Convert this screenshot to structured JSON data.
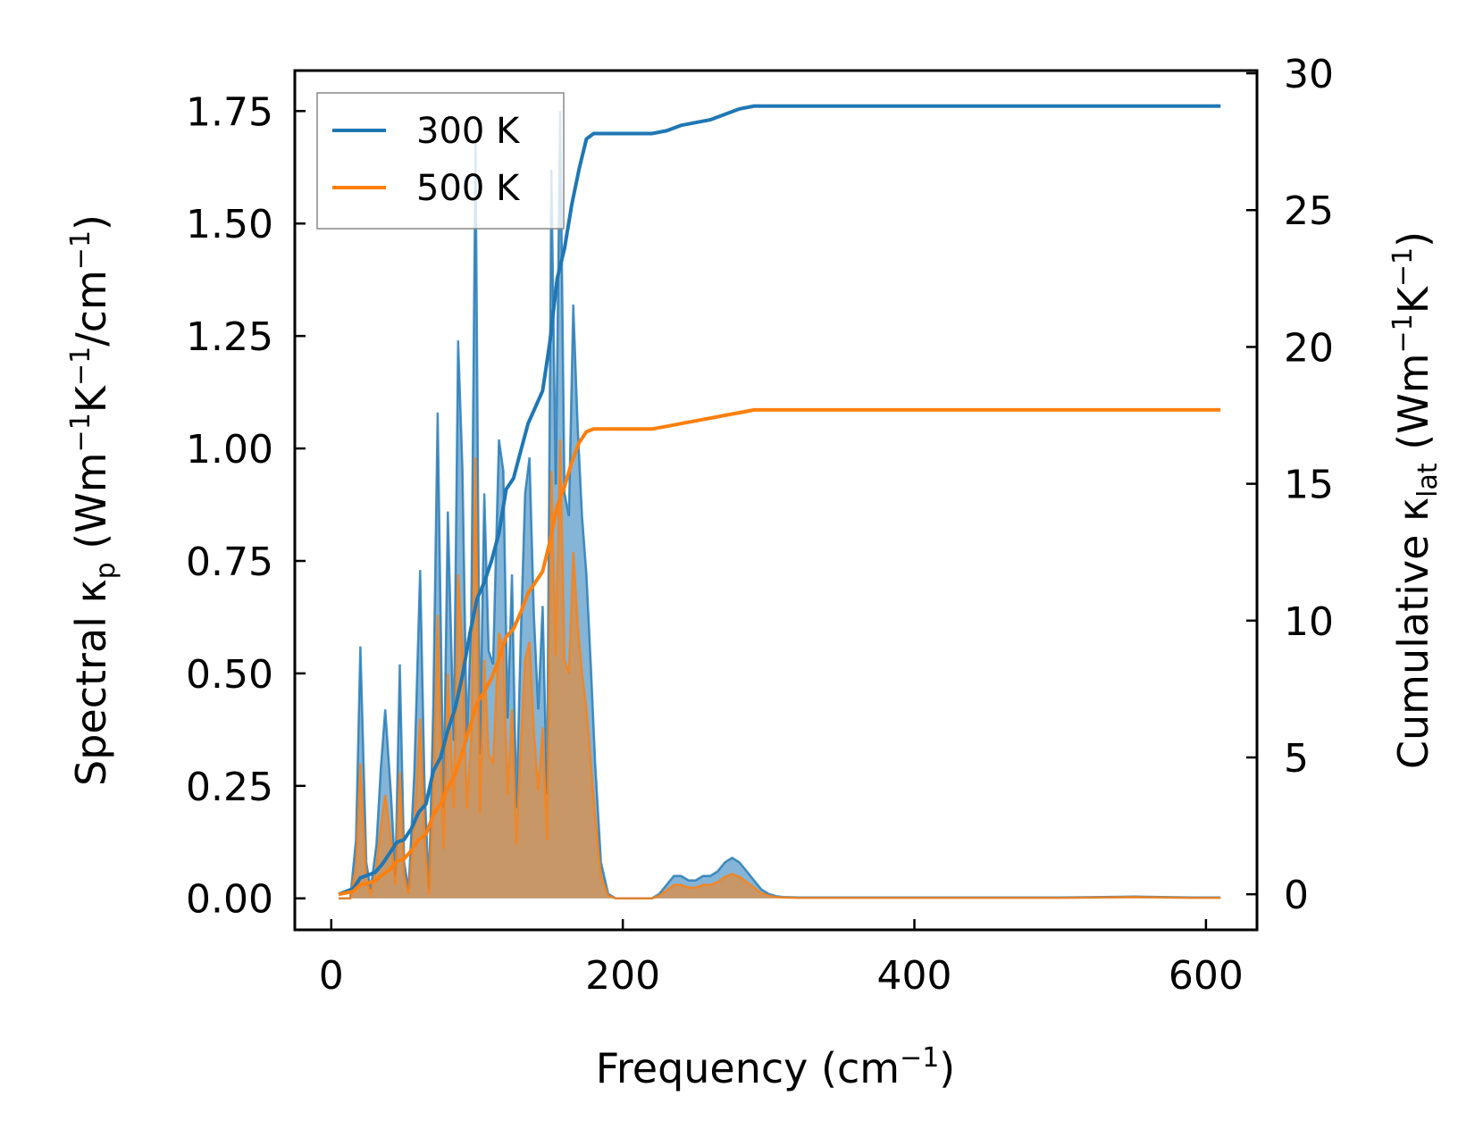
{
  "chart_data": {
    "type": "line",
    "xlabel": {
      "main": "Frequency (cm",
      "sup": "−1",
      "end": ")"
    },
    "ylabel_left": {
      "main": "Spectral κ",
      "sub": "p",
      "mid1": " (Wm",
      "sup1": "−1",
      "mid2": "K",
      "sup2": "−1",
      "mid3": "/cm",
      "sup3": "−1",
      "end": ")"
    },
    "ylabel_right": {
      "main": "Cumulative κ",
      "sub": "lat",
      "mid1": " (Wm",
      "sup1": "−1",
      "mid2": "K",
      "sup2": "−1",
      "end": ")"
    },
    "xlim": [
      -25,
      635
    ],
    "ylim_left": [
      -0.07,
      1.84
    ],
    "ylim_right": [
      -1.3,
      30.1
    ],
    "xticks": [
      0,
      200,
      400,
      600
    ],
    "xtick_labels": [
      "0",
      "200",
      "400",
      "600"
    ],
    "yticks_left": [
      0,
      0.25,
      0.5,
      0.75,
      1.0,
      1.25,
      1.5,
      1.75
    ],
    "ytick_labels_left": [
      "0.00",
      "0.25",
      "0.50",
      "0.75",
      "1.00",
      "1.25",
      "1.50",
      "1.75"
    ],
    "yticks_right": [
      0,
      5,
      10,
      15,
      20,
      25,
      30
    ],
    "ytick_labels_right": [
      "0",
      "5",
      "10",
      "15",
      "20",
      "25",
      "30"
    ],
    "grid": false,
    "legend_position": "top-left",
    "series": [
      {
        "name": "300 K",
        "color": "#1f77b4",
        "spectral": {
          "x": [
            5,
            13,
            17,
            20,
            24,
            27,
            31,
            34,
            37,
            41,
            44,
            47,
            50,
            53,
            57,
            61,
            64,
            67,
            70,
            73,
            77,
            80,
            84,
            87,
            90,
            93,
            96,
            99,
            102,
            105,
            108,
            111,
            115,
            118,
            121,
            124,
            127,
            130,
            133,
            136,
            139,
            142,
            145,
            148,
            151,
            154,
            157,
            160,
            163,
            166,
            169,
            172,
            175,
            178,
            181,
            185,
            190,
            195,
            200,
            210,
            220,
            225,
            230,
            235,
            240,
            245,
            250,
            255,
            260,
            265,
            270,
            275,
            280,
            285,
            290,
            295,
            300,
            305,
            310,
            320,
            350,
            400,
            450,
            500,
            530,
            550,
            570,
            590,
            610
          ],
          "y": [
            0,
            0,
            0.13,
            0.56,
            0.08,
            0.02,
            0.12,
            0.29,
            0.42,
            0.23,
            0.05,
            0.52,
            0.08,
            0.02,
            0.28,
            0.73,
            0.25,
            0.02,
            0.43,
            1.08,
            0.2,
            0.86,
            0.35,
            1.24,
            0.95,
            0.35,
            0.62,
            1.68,
            0.32,
            0.9,
            0.55,
            0.52,
            1.02,
            0.95,
            0.4,
            0.72,
            0.2,
            0.58,
            0.9,
            0.98,
            0.63,
            0.42,
            0.65,
            0.23,
            1.62,
            0.92,
            1.75,
            0.9,
            0.85,
            1.32,
            1.05,
            0.85,
            0.72,
            0.52,
            0.3,
            0.08,
            0.01,
            0,
            0,
            0,
            0,
            0.01,
            0.03,
            0.05,
            0.05,
            0.04,
            0.04,
            0.05,
            0.05,
            0.06,
            0.08,
            0.09,
            0.08,
            0.06,
            0.04,
            0.02,
            0.01,
            0.005,
            0.003,
            0.002,
            0.002,
            0.002,
            0.002,
            0.002,
            0.003,
            0.004,
            0.003,
            0.002,
            0.002
          ]
        },
        "cumulative": {
          "x": [
            5,
            15,
            20,
            25,
            30,
            35,
            40,
            45,
            50,
            55,
            60,
            65,
            70,
            75,
            80,
            85,
            90,
            95,
            100,
            105,
            110,
            115,
            120,
            125,
            130,
            135,
            140,
            145,
            150,
            155,
            160,
            165,
            170,
            175,
            180,
            185,
            190,
            200,
            220,
            230,
            240,
            260,
            270,
            280,
            290,
            300,
            310,
            350,
            400,
            450,
            500,
            550,
            610
          ],
          "y": [
            0,
            0.2,
            0.6,
            0.7,
            0.8,
            1.1,
            1.5,
            1.9,
            2.0,
            2.4,
            3.0,
            3.3,
            4.5,
            5.0,
            6.0,
            6.8,
            8.0,
            9.5,
            10.8,
            11.4,
            12.2,
            13.2,
            14.8,
            15.2,
            16.2,
            17.2,
            17.8,
            18.4,
            20.2,
            22.5,
            23.6,
            25.2,
            26.5,
            27.6,
            27.8,
            27.8,
            27.8,
            27.8,
            27.8,
            27.9,
            28.1,
            28.3,
            28.5,
            28.7,
            28.8,
            28.8,
            28.8,
            28.8,
            28.8,
            28.8,
            28.8,
            28.8,
            28.8
          ]
        }
      },
      {
        "name": "500 K",
        "color": "#ff7f0e",
        "spectral": {
          "x": [
            5,
            13,
            17,
            20,
            24,
            27,
            31,
            34,
            37,
            41,
            44,
            47,
            50,
            53,
            57,
            61,
            64,
            67,
            70,
            73,
            77,
            80,
            84,
            87,
            90,
            93,
            96,
            99,
            102,
            105,
            108,
            111,
            115,
            118,
            121,
            124,
            127,
            130,
            133,
            136,
            139,
            142,
            145,
            148,
            151,
            154,
            157,
            160,
            163,
            166,
            169,
            172,
            175,
            178,
            181,
            185,
            190,
            195,
            200,
            210,
            220,
            225,
            230,
            235,
            240,
            245,
            250,
            255,
            260,
            265,
            270,
            275,
            280,
            285,
            290,
            295,
            300,
            305,
            310,
            320,
            350,
            400,
            450,
            500,
            530,
            550,
            570,
            590,
            610
          ],
          "y": [
            0,
            0,
            0.07,
            0.3,
            0.04,
            0.01,
            0.07,
            0.16,
            0.23,
            0.13,
            0.03,
            0.28,
            0.05,
            0.01,
            0.16,
            0.4,
            0.14,
            0.01,
            0.24,
            0.63,
            0.11,
            0.5,
            0.2,
            0.72,
            0.55,
            0.2,
            0.36,
            0.98,
            0.19,
            0.53,
            0.32,
            0.3,
            0.59,
            0.55,
            0.23,
            0.42,
            0.12,
            0.34,
            0.53,
            0.57,
            0.37,
            0.24,
            0.38,
            0.13,
            0.95,
            0.54,
            1.02,
            0.53,
            0.5,
            0.77,
            0.61,
            0.5,
            0.42,
            0.3,
            0.18,
            0.05,
            0.006,
            0,
            0,
            0,
            0,
            0.006,
            0.018,
            0.03,
            0.03,
            0.024,
            0.024,
            0.03,
            0.03,
            0.036,
            0.048,
            0.054,
            0.048,
            0.036,
            0.024,
            0.012,
            0.006,
            0.003,
            0.002,
            0.001,
            0.001,
            0.001,
            0.001,
            0.001,
            0.002,
            0.003,
            0.002,
            0.001,
            0.001
          ]
        },
        "cumulative": {
          "x": [
            5,
            15,
            20,
            25,
            30,
            35,
            40,
            45,
            50,
            55,
            60,
            65,
            70,
            75,
            80,
            85,
            90,
            95,
            100,
            105,
            110,
            115,
            120,
            125,
            130,
            135,
            140,
            145,
            150,
            155,
            160,
            165,
            170,
            175,
            180,
            185,
            190,
            200,
            220,
            230,
            240,
            260,
            270,
            280,
            290,
            300,
            310,
            350,
            400,
            450,
            500,
            550,
            610
          ],
          "y": [
            0,
            0.1,
            0.35,
            0.4,
            0.5,
            0.7,
            0.9,
            1.2,
            1.3,
            1.6,
            2.0,
            2.2,
            2.9,
            3.3,
            3.9,
            4.4,
            5.2,
            6.1,
            7.0,
            7.4,
            7.9,
            8.6,
            9.4,
            9.7,
            10.3,
            11.0,
            11.4,
            11.8,
            12.9,
            14.2,
            14.9,
            15.8,
            16.5,
            16.9,
            17.0,
            17.0,
            17.0,
            17.0,
            17.0,
            17.1,
            17.2,
            17.4,
            17.5,
            17.6,
            17.7,
            17.7,
            17.7,
            17.7,
            17.7,
            17.7,
            17.7,
            17.7,
            17.7
          ]
        }
      }
    ]
  }
}
